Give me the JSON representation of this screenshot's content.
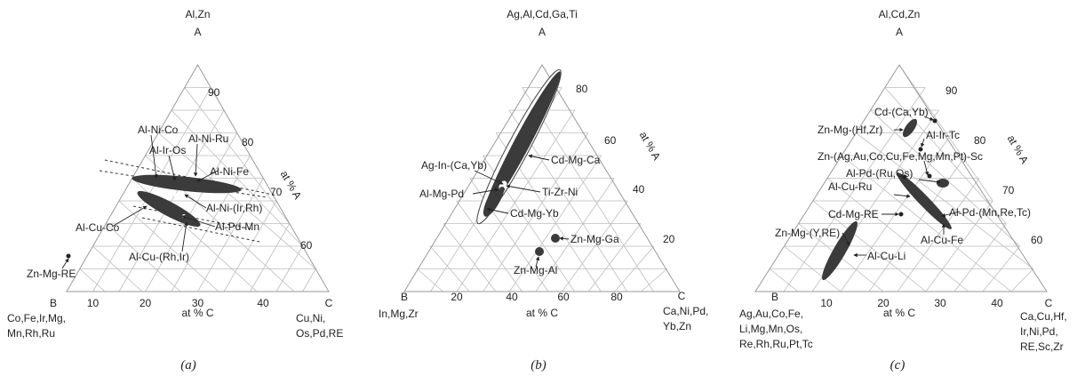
{
  "panels": [
    {
      "caption": "(a)",
      "vertex_a": "A",
      "vertex_b": "B",
      "vertex_c": "C",
      "top_elements": "Al,Zn",
      "b_elements": [
        "Co,Fe,Ir,Mg,",
        "Mn,Rh,Ru"
      ],
      "c_elements": [
        "Cu,Ni,",
        "Os,Pd,RE"
      ],
      "axis_c_label": "at % C",
      "axis_a_label": "at % A",
      "c_ticks": [
        "10",
        "20",
        "30",
        "40"
      ],
      "a_ticks": [
        "60",
        "70",
        "80",
        "90"
      ],
      "phases": [
        "Al-Ni-Co",
        "Al-Ir-Os",
        "Al-Ni-Ru",
        "Al-Ni-Fe",
        "Al-Ni-(Ir,Rh)",
        "Al-Pd-Mn",
        "Al-Cu-Co",
        "Al-Cu-(Rh,Ir)",
        "Zn-Mg-RE"
      ]
    },
    {
      "caption": "(b)",
      "vertex_a": "A",
      "vertex_b": "B",
      "vertex_c": "C",
      "top_elements": "Ag,Al,Cd,Ga,Ti",
      "b_elements": [
        "In,Mg,Zr"
      ],
      "c_elements": [
        "Ca,Ni,Pd,",
        "Yb,Zn"
      ],
      "axis_c_label": "at % C",
      "axis_a_label": "at % A",
      "c_ticks": [
        "20",
        "40",
        "60",
        "80"
      ],
      "a_ticks": [
        "20",
        "40",
        "60",
        "80"
      ],
      "phases": [
        "Cd-Mg-Ca",
        "Ag-In-(Ca,Yb)",
        "Ti-Zr-Ni",
        "Al-Mg-Pd",
        "Cd-Mg-Yb",
        "Zn-Mg-Ga",
        "Zn-Mg-Al"
      ]
    },
    {
      "caption": "(c)",
      "vertex_a": "A",
      "vertex_b": "B",
      "vertex_c": "C",
      "top_elements": "Al,Cd,Zn",
      "b_elements": [
        "Ag,Au,Co,Fe,",
        "Li,Mg,Mn,Os,",
        "Re,Rh,Ru,Pt,Tc"
      ],
      "c_elements": [
        "Ca,Cu,Hf,",
        "Ir,Ni,Pd,",
        "RE,Sc,Zr"
      ],
      "axis_c_label": "at % C",
      "axis_a_label": "at % A",
      "c_ticks": [
        "10",
        "20",
        "30",
        "40"
      ],
      "a_ticks": [
        "60",
        "70",
        "80",
        "90"
      ],
      "phases": [
        "Cd-(Ca,Yb)",
        "Zn-Mg-(Hf,Zr)",
        "Al-Ir-Tc",
        "Zn-(Ag,Au,Co,Cu,Fe,Mg,Mn,Pt)-Sc",
        "Al-Pd-(Ru,Os)",
        "Al-Cu-Ru",
        "Al-Pd-(Mn,Re,Tc)",
        "Cd-Mg-RE",
        "Zn-Mg-(Y,RE)",
        "Al-Cu-Fe",
        "Al-Cu-Li"
      ]
    }
  ]
}
